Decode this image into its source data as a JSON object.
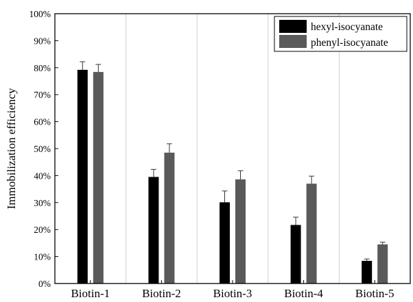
{
  "chart_data": {
    "type": "bar",
    "title": "",
    "xlabel": "",
    "ylabel": "Immobilization efficiency",
    "categories": [
      "Biotin-1",
      "Biotin-2",
      "Biotin-3",
      "Biotin-4",
      "Biotin-5"
    ],
    "y_ticks": [
      "0%",
      "10%",
      "20%",
      "30%",
      "40%",
      "50%",
      "60%",
      "70%",
      "80%",
      "90%",
      "100%"
    ],
    "ylim": [
      0,
      100
    ],
    "grid": "vertical separators between categories",
    "legend_position": "top-right",
    "series": [
      {
        "name": "hexyl-isocyanate",
        "color": "#000000",
        "values": [
          79.2,
          39.5,
          30.1,
          21.7,
          8.4
        ],
        "errors": [
          3.0,
          2.8,
          4.2,
          2.9,
          0.7
        ]
      },
      {
        "name": "phenyl-isocyanate",
        "color": "#5a5a5a",
        "values": [
          78.4,
          48.5,
          38.6,
          37.0,
          14.5
        ],
        "errors": [
          2.8,
          3.3,
          3.2,
          2.8,
          0.8
        ]
      }
    ]
  }
}
